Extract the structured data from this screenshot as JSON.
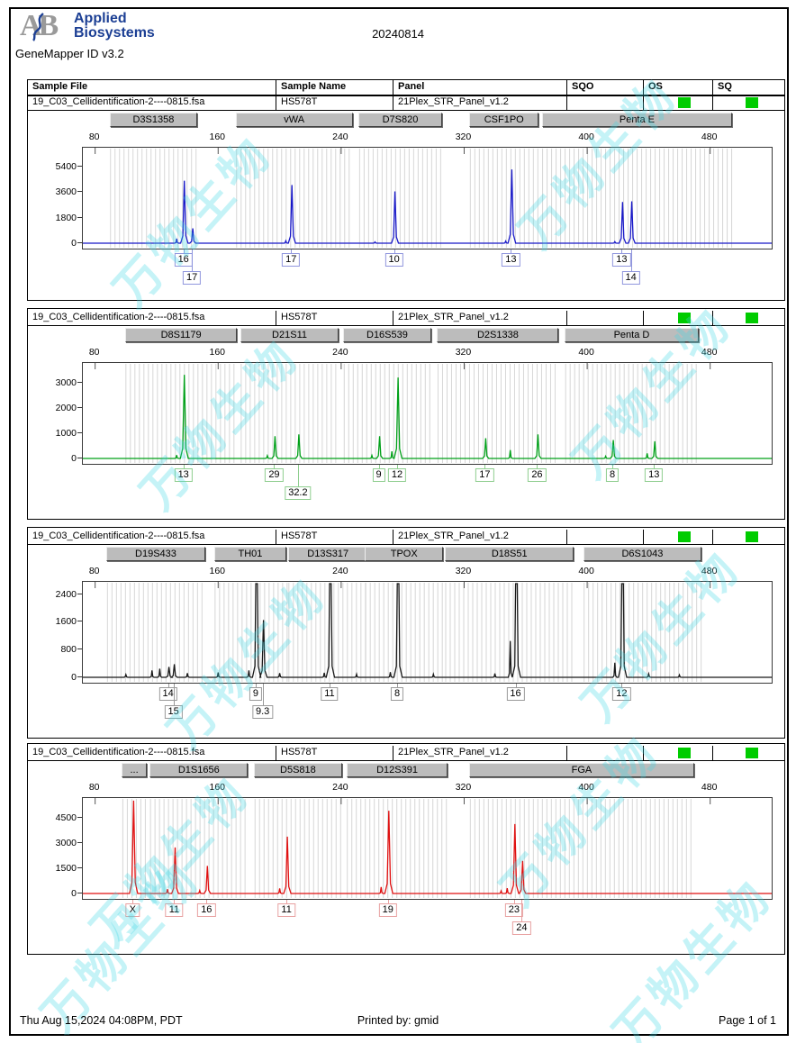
{
  "header": {
    "logo_monogram": "AB",
    "logo_line1": "Applied",
    "logo_line2": "Biosystems",
    "app_version": "GeneMapper ID v3.2",
    "date": "20240814"
  },
  "table": {
    "columns": [
      "Sample File",
      "Sample Name",
      "Panel",
      "SQO",
      "OS",
      "SQ"
    ]
  },
  "sample": {
    "file": "19_C03_Cellidentification-2----0815.fsa",
    "name": "HS578T",
    "panel": "21Plex_STR_Panel_v1.2",
    "sqo": "",
    "os_pass": true,
    "sq_pass": true
  },
  "colors": {
    "status_green": "#00cc00",
    "bin_stripe": "#d6d6d6",
    "watermark": "#40d6e6"
  },
  "axis": {
    "x_ticks": [
      80,
      160,
      240,
      320,
      400,
      480
    ],
    "x_range_bp": [
      72,
      520
    ]
  },
  "watermark": {
    "text": "万物生物"
  },
  "footer": {
    "left": "Thu Aug 15,2024 04:08PM, PDT",
    "center": "Printed by: gmid",
    "right": "Page 1 of 1"
  },
  "chart_data": [
    {
      "type": "line",
      "name": "blue-dye-electropherogram",
      "color": "#1818c8",
      "label_border": "#9096dd",
      "y_ticks": [
        0,
        1800,
        3600,
        5400
      ],
      "ylim": 6600,
      "markers": [
        {
          "name": "D3S1358",
          "bp_span": [
            90,
            147
          ]
        },
        {
          "name": "vWA",
          "bp_span": [
            172,
            248
          ]
        },
        {
          "name": "D7S820",
          "bp_span": [
            252,
            306
          ]
        },
        {
          "name": "CSF1PO",
          "bp_span": [
            324,
            369
          ]
        },
        {
          "name": "Penta E",
          "bp_span": [
            371,
            495
          ]
        }
      ],
      "peaks": [
        {
          "marker": "D3S1358",
          "allele": "16",
          "bp": 138,
          "height_rfu": 4400,
          "label_row": 0
        },
        {
          "marker": "D3S1358",
          "allele": "17",
          "bp": 143.5,
          "height_rfu": 1050,
          "label_row": 1
        },
        {
          "marker": "vWA",
          "allele": "17",
          "bp": 208,
          "height_rfu": 4100,
          "label_row": 0
        },
        {
          "marker": "D7S820",
          "allele": "10",
          "bp": 275,
          "height_rfu": 3650,
          "label_row": 0
        },
        {
          "marker": "CSF1PO",
          "allele": "13",
          "bp": 351,
          "height_rfu": 5200,
          "label_row": 0
        },
        {
          "marker": "Penta E",
          "allele": "13",
          "bp": 423,
          "height_rfu": 2900,
          "label_row": 0
        },
        {
          "marker": "Penta E",
          "allele": "14",
          "bp": 429,
          "height_rfu": 2950,
          "label_row": 1
        }
      ],
      "minor_peaks": [
        {
          "bp": 133,
          "height_rfu": 320
        },
        {
          "bp": 204,
          "height_rfu": 170
        },
        {
          "bp": 262,
          "height_rfu": 90
        },
        {
          "bp": 347,
          "height_rfu": 150
        },
        {
          "bp": 418,
          "height_rfu": 110
        }
      ]
    },
    {
      "type": "line",
      "name": "green-dye-electropherogram",
      "color": "#00a018",
      "label_border": "#8fce8f",
      "y_ticks": [
        0,
        1000,
        2000,
        3000
      ],
      "ylim": 3700,
      "markers": [
        {
          "name": "D8S1179",
          "bp_span": [
            100,
            173
          ]
        },
        {
          "name": "D21S11",
          "bp_span": [
            175,
            239
          ]
        },
        {
          "name": "D16S539",
          "bp_span": [
            242,
            299
          ]
        },
        {
          "name": "D2S1338",
          "bp_span": [
            303,
            382
          ]
        },
        {
          "name": "Penta D",
          "bp_span": [
            386,
            473
          ]
        }
      ],
      "peaks": [
        {
          "marker": "D8S1179",
          "allele": "13",
          "bp": 138,
          "height_rfu": 3300,
          "label_row": 0
        },
        {
          "marker": "D21S11",
          "allele": "29",
          "bp": 197,
          "height_rfu": 880,
          "label_row": 0
        },
        {
          "marker": "D21S11",
          "allele": "32.2",
          "bp": 212.5,
          "height_rfu": 950,
          "label_row": 1
        },
        {
          "marker": "D16S539",
          "allele": "9",
          "bp": 265,
          "height_rfu": 880,
          "label_row": 0
        },
        {
          "marker": "D16S539",
          "allele": "12",
          "bp": 277,
          "height_rfu": 3200,
          "label_row": 0
        },
        {
          "marker": "D2S1338",
          "allele": "17",
          "bp": 334,
          "height_rfu": 800,
          "label_row": 0
        },
        {
          "marker": "D2S1338",
          "allele": "26",
          "bp": 368,
          "height_rfu": 950,
          "label_row": 0
        },
        {
          "marker": "Penta D",
          "allele": "8",
          "bp": 417,
          "height_rfu": 730,
          "label_row": 0
        },
        {
          "marker": "Penta D",
          "allele": "13",
          "bp": 444,
          "height_rfu": 680,
          "label_row": 0
        }
      ],
      "minor_peaks": [
        {
          "bp": 133,
          "height_rfu": 130
        },
        {
          "bp": 192,
          "height_rfu": 110
        },
        {
          "bp": 260,
          "height_rfu": 120
        },
        {
          "bp": 273,
          "height_rfu": 280
        },
        {
          "bp": 350,
          "height_rfu": 330
        },
        {
          "bp": 412,
          "height_rfu": 90
        },
        {
          "bp": 439,
          "height_rfu": 200
        }
      ]
    },
    {
      "type": "line",
      "name": "black-dye-electropherogram",
      "color": "#181818",
      "label_border": "#9a9a9a",
      "y_ticks": [
        0,
        800,
        1600,
        2400
      ],
      "ylim": 2700,
      "markers": [
        {
          "name": "D19S433",
          "bp_span": [
            88,
            152
          ]
        },
        {
          "name": "TH01",
          "bp_span": [
            158,
            205
          ]
        },
        {
          "name": "D13S317",
          "bp_span": [
            206,
            258
          ]
        },
        {
          "name": "TPOX",
          "bp_span": [
            256,
            307
          ]
        },
        {
          "name": "D18S51",
          "bp_span": [
            308,
            392
          ]
        },
        {
          "name": "D6S1043",
          "bp_span": [
            398,
            475
          ]
        }
      ],
      "peaks": [
        {
          "marker": "D19S433",
          "allele": "14",
          "bp": 128,
          "height_rfu": 300,
          "label_row": 0
        },
        {
          "marker": "D19S433",
          "allele": "15",
          "bp": 131.5,
          "height_rfu": 380,
          "label_row": 1
        },
        {
          "marker": "TH01",
          "allele": "9",
          "bp": 185,
          "height_rfu": 2700,
          "label_row": 0
        },
        {
          "marker": "TH01",
          "allele": "9.3",
          "bp": 189.5,
          "height_rfu": 1650,
          "label_row": 1
        },
        {
          "marker": "D13S317",
          "allele": "11",
          "bp": 233,
          "height_rfu": 2700,
          "label_row": 0
        },
        {
          "marker": "TPOX",
          "allele": "8",
          "bp": 277,
          "height_rfu": 2700,
          "label_row": 0
        },
        {
          "marker": "D18S51",
          "allele": "16",
          "bp": 354,
          "height_rfu": 2700,
          "label_row": 0
        },
        {
          "marker": "D6S1043",
          "allele": "12",
          "bp": 423,
          "height_rfu": 2700,
          "label_row": 0
        }
      ],
      "minor_peaks": [
        {
          "bp": 100,
          "height_rfu": 80
        },
        {
          "bp": 117,
          "height_rfu": 200
        },
        {
          "bp": 122,
          "height_rfu": 250
        },
        {
          "bp": 140,
          "height_rfu": 120
        },
        {
          "bp": 160,
          "height_rfu": 140
        },
        {
          "bp": 180,
          "height_rfu": 200
        },
        {
          "bp": 200,
          "height_rfu": 120
        },
        {
          "bp": 229,
          "height_rfu": 130
        },
        {
          "bp": 250,
          "height_rfu": 90
        },
        {
          "bp": 272,
          "height_rfu": 150
        },
        {
          "bp": 300,
          "height_rfu": 90
        },
        {
          "bp": 340,
          "height_rfu": 110
        },
        {
          "bp": 350,
          "height_rfu": 1050
        },
        {
          "bp": 418,
          "height_rfu": 420
        },
        {
          "bp": 440,
          "height_rfu": 100
        },
        {
          "bp": 460,
          "height_rfu": 70
        }
      ]
    },
    {
      "type": "line",
      "name": "red-dye-electropherogram",
      "color": "#e01010",
      "label_border": "#e8a0a0",
      "y_ticks": [
        0,
        1500,
        3000,
        4500
      ],
      "ylim": 5600,
      "markers": [
        {
          "name": "...",
          "bp_span": [
            98,
            114
          ]
        },
        {
          "name": "D1S1656",
          "bp_span": [
            116,
            180
          ]
        },
        {
          "name": "D5S818",
          "bp_span": [
            184,
            241
          ]
        },
        {
          "name": "D12S391",
          "bp_span": [
            244,
            310
          ]
        },
        {
          "name": "FGA",
          "bp_span": [
            324,
            470
          ]
        }
      ],
      "peaks": [
        {
          "marker": "...",
          "allele": "X",
          "bp": 105,
          "height_rfu": 5550,
          "label_row": 0
        },
        {
          "marker": "D1S1656",
          "allele": "11",
          "bp": 132,
          "height_rfu": 2750,
          "label_row": 0
        },
        {
          "marker": "D1S1656",
          "allele": "16",
          "bp": 153,
          "height_rfu": 1650,
          "label_row": 0
        },
        {
          "marker": "D5S818",
          "allele": "11",
          "bp": 205,
          "height_rfu": 3400,
          "label_row": 0
        },
        {
          "marker": "D12S391",
          "allele": "19",
          "bp": 271,
          "height_rfu": 4950,
          "label_row": 0
        },
        {
          "marker": "FGA",
          "allele": "23",
          "bp": 353,
          "height_rfu": 4150,
          "label_row": 0
        },
        {
          "marker": "FGA",
          "allele": "24",
          "bp": 358,
          "height_rfu": 1950,
          "label_row": 1
        }
      ],
      "minor_peaks": [
        {
          "bp": 127,
          "height_rfu": 260
        },
        {
          "bp": 148,
          "height_rfu": 180
        },
        {
          "bp": 200,
          "height_rfu": 300
        },
        {
          "bp": 266,
          "height_rfu": 380
        },
        {
          "bp": 344,
          "height_rfu": 150
        },
        {
          "bp": 348,
          "height_rfu": 320
        }
      ]
    }
  ]
}
